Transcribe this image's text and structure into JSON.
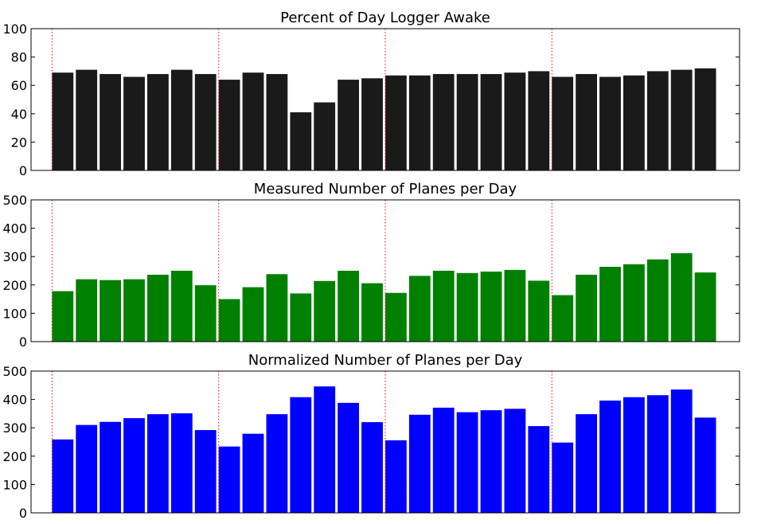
{
  "chart_data": [
    {
      "type": "bar",
      "title": "Percent of Day Logger Awake",
      "xlabel": "",
      "ylabel": "",
      "ylim": [
        0,
        100
      ],
      "yticks": [
        "0",
        "20",
        "40",
        "60",
        "80",
        "100"
      ],
      "color": "#1a1a1a",
      "values": [
        69,
        71,
        68,
        66,
        68,
        71,
        68,
        64,
        69,
        68,
        41,
        48,
        64,
        65,
        67,
        67,
        68,
        68,
        68,
        69,
        70,
        66,
        68,
        66,
        67,
        70,
        71,
        72
      ],
      "vlines_after_bar": [
        0,
        7,
        14,
        21
      ],
      "vline_color": "#ff0000",
      "grid": false
    },
    {
      "type": "bar",
      "title": "Measured Number of Planes per Day",
      "xlabel": "",
      "ylabel": "",
      "ylim": [
        0,
        500
      ],
      "yticks": [
        "0",
        "100",
        "200",
        "300",
        "400",
        "500"
      ],
      "color": "#008000",
      "values": [
        178,
        220,
        217,
        220,
        236,
        250,
        199,
        150,
        192,
        238,
        170,
        214,
        250,
        206,
        172,
        232,
        250,
        242,
        247,
        253,
        215,
        164,
        236,
        264,
        273,
        290,
        312,
        244
      ],
      "vlines_after_bar": [
        0,
        7,
        14,
        21
      ],
      "vline_color": "#ff0000",
      "grid": false
    },
    {
      "type": "bar",
      "title": "Normalized Number of Planes per Day",
      "xlabel": "",
      "ylabel": "",
      "ylim": [
        0,
        500
      ],
      "yticks": [
        "0",
        "100",
        "200",
        "300",
        "400",
        "500"
      ],
      "color": "#0000ff",
      "values": [
        259,
        310,
        321,
        334,
        348,
        351,
        292,
        234,
        279,
        348,
        408,
        446,
        388,
        320,
        256,
        346,
        371,
        355,
        362,
        367,
        306,
        248,
        348,
        396,
        408,
        415,
        435,
        336
      ],
      "vlines_after_bar": [
        0,
        7,
        14,
        21
      ],
      "vline_color": "#ff0000",
      "grid": false
    }
  ]
}
